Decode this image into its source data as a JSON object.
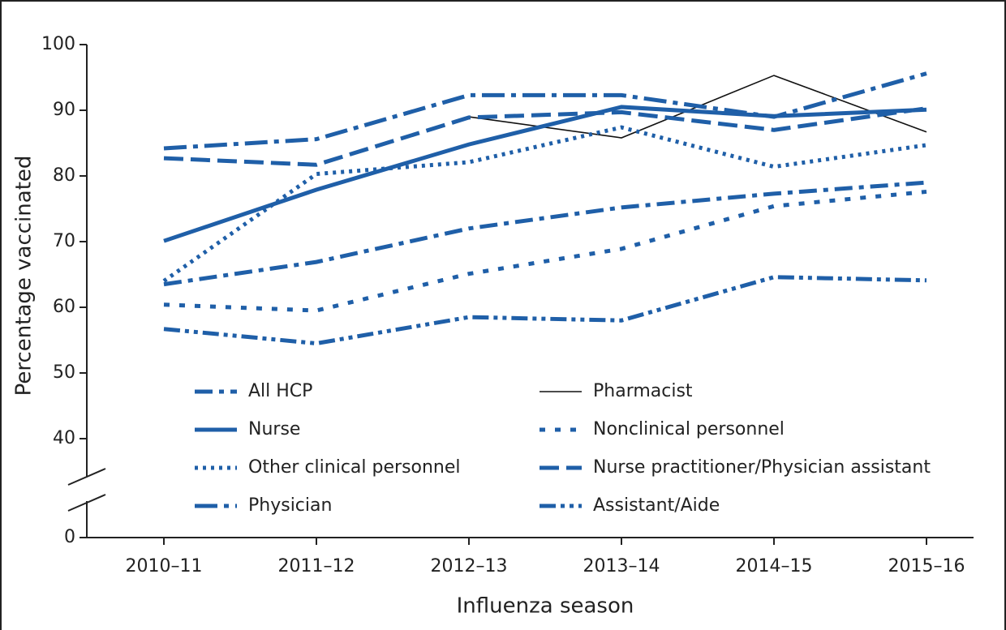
{
  "chart_data": {
    "type": "line",
    "x_label": "Influenza season",
    "y_label": "Percentage vaccinated",
    "categories": [
      "2010–11",
      "2011–12",
      "2012–13",
      "2013–14",
      "2014–15",
      "2015–16"
    ],
    "ylim": [
      0,
      100
    ],
    "yticks": [
      0,
      40,
      50,
      60,
      70,
      80,
      90,
      100
    ],
    "y_break": [
      0,
      40
    ],
    "series": [
      {
        "name": "All HCP",
        "color": "#1f5fa8",
        "dash": "dash-dot",
        "values": [
          63.5,
          66.9,
          72.0,
          75.2,
          77.3,
          79.0
        ]
      },
      {
        "name": "Pharmacist",
        "color": "#111111",
        "dash": "thin",
        "values": [
          null,
          null,
          89.0,
          85.8,
          95.3,
          86.7
        ]
      },
      {
        "name": "Nurse",
        "color": "#1f5fa8",
        "dash": "solid",
        "values": [
          70.1,
          77.9,
          84.8,
          90.5,
          89.1,
          90.1
        ]
      },
      {
        "name": "Nonclinical personnel",
        "color": "#1f5fa8",
        "dash": "sparse-dot",
        "values": [
          60.4,
          59.5,
          65.1,
          68.9,
          75.4,
          77.6
        ]
      },
      {
        "name": "Other clinical personnel",
        "color": "#1f5fa8",
        "dash": "dot",
        "values": [
          64.0,
          80.3,
          82.1,
          87.4,
          81.4,
          84.7
        ]
      },
      {
        "name": "Nurse practitioner/Physician assistant",
        "color": "#1f5fa8",
        "dash": "long-dash",
        "values": [
          82.7,
          81.7,
          88.9,
          89.7,
          87.0,
          90.3
        ]
      },
      {
        "name": "Physician",
        "color": "#1f5fa8",
        "dash": "long-dash-dot",
        "values": [
          84.2,
          85.6,
          92.3,
          92.3,
          89.0,
          95.6
        ]
      },
      {
        "name": "Assistant/Aide",
        "color": "#1f5fa8",
        "dash": "dash-dot-dot",
        "values": [
          56.7,
          54.5,
          58.5,
          58.0,
          64.6,
          64.1
        ]
      }
    ]
  }
}
